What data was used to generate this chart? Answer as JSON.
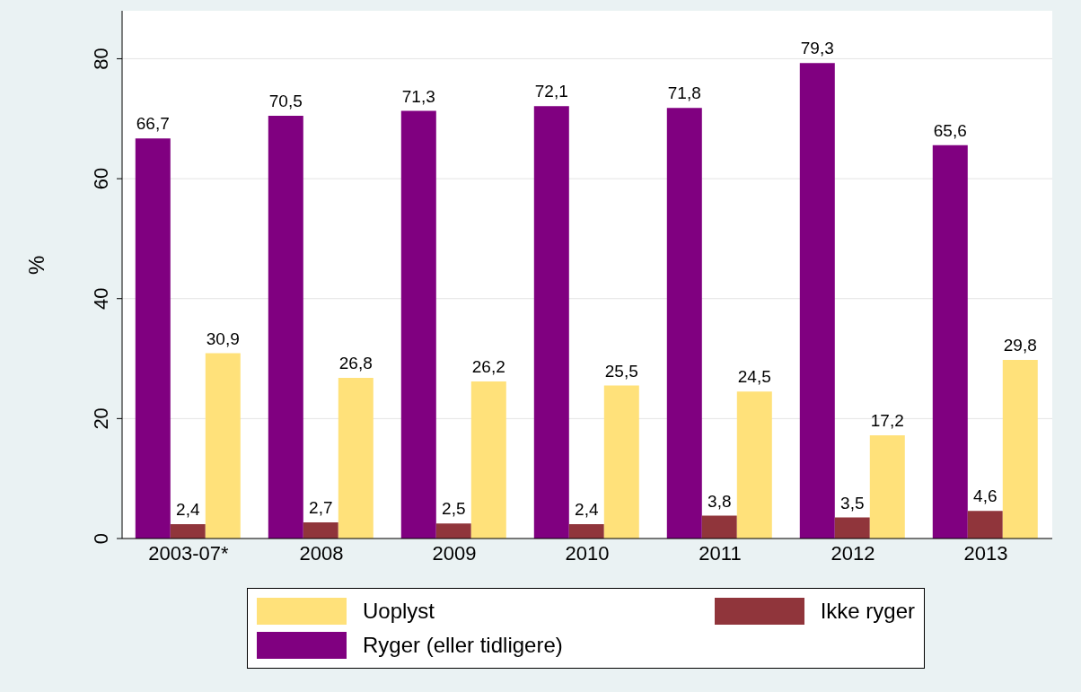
{
  "chart_data": {
    "type": "bar",
    "ylabel": "%",
    "categories": [
      "2003-07*",
      "2008",
      "2009",
      "2010",
      "2011",
      "2012",
      "2013"
    ],
    "series": [
      {
        "name": "Ryger (eller tidligere)",
        "color": "#800080",
        "values": [
          66.7,
          70.5,
          71.3,
          72.1,
          71.8,
          79.3,
          65.6
        ],
        "value_labels": [
          "66,7",
          "70,5",
          "71,3",
          "72,1",
          "71,8",
          "79,3",
          "65,6"
        ]
      },
      {
        "name": "Ikke ryger",
        "color": "#90353b",
        "values": [
          2.4,
          2.7,
          2.5,
          2.4,
          3.8,
          3.5,
          4.6
        ],
        "value_labels": [
          "2,4",
          "2,7",
          "2,5",
          "2,4",
          "3,8",
          "3,5",
          "4,6"
        ]
      },
      {
        "name": "Uoplyst",
        "color": "#ffe17a",
        "values": [
          30.9,
          26.8,
          26.2,
          25.5,
          24.5,
          17.2,
          29.8
        ],
        "value_labels": [
          "30,9",
          "26,8",
          "26,2",
          "25,5",
          "24,5",
          "17,2",
          "29,8"
        ]
      }
    ],
    "ylim": [
      0,
      88
    ],
    "yticks": [
      0,
      20,
      40,
      60,
      80
    ],
    "grid": "y",
    "legend": "bottom"
  }
}
